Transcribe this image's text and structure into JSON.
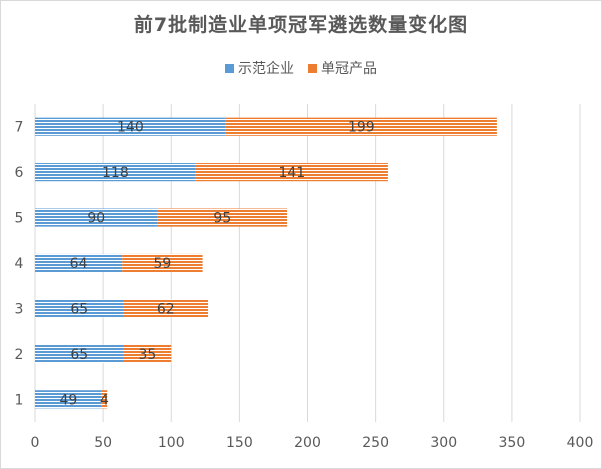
{
  "chart_data": {
    "type": "bar",
    "orientation": "horizontal",
    "stacked": true,
    "title": "前7批制造业单项冠军遴选数量变化图",
    "categories": [
      "1",
      "2",
      "3",
      "4",
      "5",
      "6",
      "7"
    ],
    "series": [
      {
        "name": "示范企业",
        "values": [
          49,
          65,
          65,
          64,
          90,
          118,
          140
        ],
        "color": "#5b9bd5"
      },
      {
        "name": "单冠产品",
        "values": [
          4,
          35,
          62,
          59,
          95,
          141,
          199
        ],
        "color": "#ed7d31"
      }
    ],
    "xlim": [
      0,
      400
    ],
    "xticks": [
      0,
      50,
      100,
      150,
      200,
      250,
      300,
      350,
      400
    ],
    "grid": true,
    "legend_position": "top"
  }
}
